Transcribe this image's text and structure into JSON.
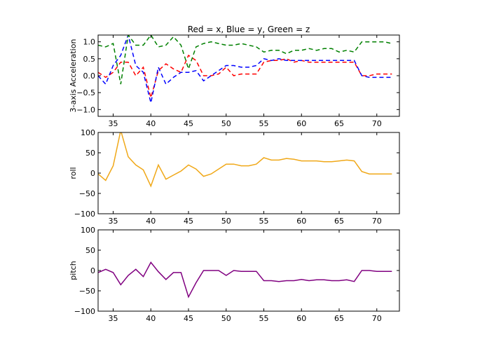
{
  "title": "Red = x, Blue = y, Green = z",
  "chart_data": [
    {
      "type": "line",
      "ylabel": "3-axis Acceleration",
      "xlim": [
        33,
        73
      ],
      "ylim": [
        -1.2,
        1.2
      ],
      "xticks": [
        "35",
        "40",
        "45",
        "50",
        "55",
        "60",
        "65",
        "70"
      ],
      "xtick_values": [
        35,
        40,
        45,
        50,
        55,
        60,
        65,
        70
      ],
      "yticks": [
        "1.0",
        "0.5",
        "0.0",
        "−0.5",
        "−1.0"
      ],
      "ytick_values": [
        1.0,
        0.5,
        0.0,
        -0.5,
        -1.0
      ],
      "grid": false,
      "line_style": "dashed",
      "series": [
        {
          "color": "#ff0000",
          "x": [
            33,
            34,
            35,
            36,
            37,
            38,
            39,
            40,
            41,
            42,
            43,
            44,
            45,
            46,
            47,
            48,
            49,
            50,
            51,
            52,
            53,
            54,
            55,
            56,
            57,
            58,
            59,
            60,
            61,
            62,
            63,
            64,
            65,
            66,
            67,
            68,
            69,
            70,
            71,
            72
          ],
          "y": [
            0.1,
            -0.05,
            0.1,
            0.4,
            0.4,
            0.0,
            0.25,
            -0.65,
            0.15,
            0.35,
            0.2,
            0.1,
            0.6,
            0.45,
            0.0,
            0.0,
            0.05,
            0.25,
            0.0,
            0.05,
            0.05,
            0.05,
            0.4,
            0.45,
            0.45,
            0.5,
            0.4,
            0.45,
            0.4,
            0.4,
            0.4,
            0.4,
            0.4,
            0.4,
            0.4,
            0.0,
            0.0,
            0.05,
            0.05,
            0.05
          ]
        },
        {
          "color": "#0000ff",
          "x": [
            33,
            34,
            35,
            36,
            37,
            38,
            39,
            40,
            41,
            42,
            43,
            44,
            45,
            46,
            47,
            48,
            49,
            50,
            51,
            52,
            53,
            54,
            55,
            56,
            57,
            58,
            59,
            60,
            61,
            62,
            63,
            64,
            65,
            66,
            67,
            68,
            69,
            70,
            71,
            72
          ],
          "y": [
            0.0,
            -0.25,
            0.3,
            0.6,
            1.2,
            0.3,
            0.1,
            -0.8,
            0.25,
            -0.25,
            -0.05,
            0.1,
            0.1,
            0.15,
            -0.15,
            0.0,
            0.15,
            0.3,
            0.3,
            0.25,
            0.25,
            0.3,
            0.5,
            0.45,
            0.5,
            0.45,
            0.45,
            0.45,
            0.45,
            0.45,
            0.45,
            0.45,
            0.45,
            0.45,
            0.45,
            0.0,
            -0.05,
            -0.05,
            -0.05,
            -0.05
          ]
        },
        {
          "color": "#008000",
          "x": [
            33,
            34,
            35,
            36,
            37,
            38,
            39,
            40,
            41,
            42,
            43,
            44,
            45,
            46,
            47,
            48,
            49,
            50,
            51,
            52,
            53,
            54,
            55,
            56,
            57,
            58,
            59,
            60,
            61,
            62,
            63,
            64,
            65,
            66,
            67,
            68,
            69,
            70,
            71,
            72
          ],
          "y": [
            0.9,
            0.85,
            0.95,
            -0.25,
            1.2,
            0.9,
            0.9,
            1.2,
            0.85,
            0.9,
            1.15,
            0.9,
            0.2,
            0.85,
            0.95,
            1.0,
            0.95,
            0.9,
            0.9,
            0.95,
            0.9,
            0.85,
            0.7,
            0.75,
            0.75,
            0.65,
            0.75,
            0.75,
            0.8,
            0.75,
            0.8,
            0.8,
            0.7,
            0.75,
            0.7,
            1.0,
            1.0,
            1.0,
            1.0,
            0.95
          ]
        }
      ]
    },
    {
      "type": "line",
      "ylabel": "roll",
      "xlim": [
        33,
        73
      ],
      "ylim": [
        -100,
        100
      ],
      "xticks": [
        "35",
        "40",
        "45",
        "50",
        "55",
        "60",
        "65",
        "70"
      ],
      "xtick_values": [
        35,
        40,
        45,
        50,
        55,
        60,
        65,
        70
      ],
      "yticks": [
        "100",
        "50",
        "0",
        "−50",
        "−100"
      ],
      "ytick_values": [
        100,
        50,
        0,
        -50,
        -100
      ],
      "grid": false,
      "line_style": "solid",
      "series": [
        {
          "color": "#f0a818",
          "x": [
            33,
            34,
            35,
            36,
            37,
            38,
            39,
            40,
            41,
            42,
            43,
            44,
            45,
            46,
            47,
            48,
            49,
            50,
            51,
            52,
            53,
            54,
            55,
            56,
            57,
            58,
            59,
            60,
            61,
            62,
            63,
            64,
            65,
            66,
            67,
            68,
            69,
            70,
            71,
            72
          ],
          "y": [
            -2,
            -18,
            18,
            105,
            40,
            20,
            8,
            -32,
            20,
            -15,
            -5,
            5,
            20,
            10,
            -8,
            -2,
            10,
            22,
            22,
            18,
            18,
            22,
            38,
            32,
            32,
            36,
            34,
            30,
            30,
            30,
            28,
            28,
            30,
            32,
            30,
            4,
            -2,
            -2,
            -2,
            -2
          ]
        }
      ]
    },
    {
      "type": "line",
      "ylabel": "pitch",
      "xlim": [
        33,
        73
      ],
      "ylim": [
        -100,
        100
      ],
      "xticks": [
        "35",
        "40",
        "45",
        "50",
        "55",
        "60",
        "65",
        "70"
      ],
      "xtick_values": [
        35,
        40,
        45,
        50,
        55,
        60,
        65,
        70
      ],
      "yticks": [
        "100",
        "50",
        "0",
        "−50",
        "−100"
      ],
      "ytick_values": [
        100,
        50,
        0,
        -50,
        -100
      ],
      "grid": false,
      "line_style": "solid",
      "series": [
        {
          "color": "#800080",
          "x": [
            33,
            34,
            35,
            36,
            37,
            38,
            39,
            40,
            41,
            42,
            43,
            44,
            45,
            46,
            47,
            48,
            49,
            50,
            51,
            52,
            53,
            54,
            55,
            56,
            57,
            58,
            59,
            60,
            61,
            62,
            63,
            64,
            65,
            66,
            67,
            68,
            69,
            70,
            71,
            72
          ],
          "y": [
            -5,
            3,
            -5,
            -35,
            -12,
            3,
            -15,
            20,
            -3,
            -22,
            -5,
            -5,
            -65,
            -30,
            0,
            0,
            0,
            -12,
            0,
            -2,
            -2,
            -2,
            -25,
            -25,
            -27,
            -25,
            -25,
            -22,
            -25,
            -23,
            -23,
            -25,
            -25,
            -23,
            -27,
            0,
            0,
            -2,
            -2,
            -2
          ]
        }
      ]
    }
  ]
}
